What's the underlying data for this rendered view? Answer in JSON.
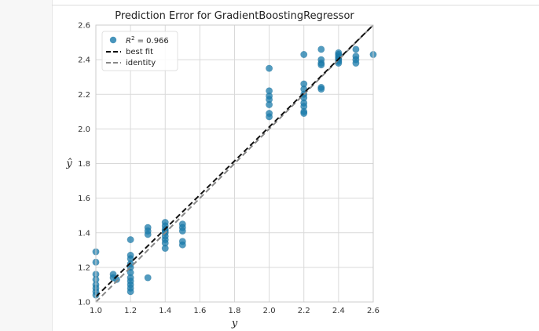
{
  "chart_data": {
    "type": "scatter",
    "title": "Prediction Error for GradientBoostingRegressor",
    "xlabel": "y",
    "ylabel": "ŷ",
    "xlim": [
      1.0,
      2.6
    ],
    "ylim": [
      1.0,
      2.6
    ],
    "xticks": [
      "1.0",
      "1.2",
      "1.4",
      "1.6",
      "1.8",
      "2.0",
      "2.2",
      "2.4",
      "2.6"
    ],
    "yticks": [
      "1.0",
      "1.2",
      "1.4",
      "1.6",
      "1.8",
      "2.0",
      "2.2",
      "2.4",
      "2.6"
    ],
    "grid": true,
    "legend_position": "top-left",
    "legend": [
      {
        "label_main": "R",
        "label_sup": "2",
        "label_rest": " = 0.966",
        "kind": "marker",
        "color": "#1a7bab"
      },
      {
        "label": "best fit",
        "kind": "line",
        "color": "#111111"
      },
      {
        "label": "identity",
        "kind": "line",
        "color": "#888888"
      }
    ],
    "marker_color": "#1a7bab",
    "best_fit": {
      "x": [
        1.0,
        2.6
      ],
      "y": [
        1.03,
        2.6
      ]
    },
    "identity": {
      "x": [
        1.0,
        2.6
      ],
      "y": [
        1.0,
        2.6
      ]
    },
    "points": [
      [
        1.0,
        1.29
      ],
      [
        1.0,
        1.23
      ],
      [
        1.0,
        1.16
      ],
      [
        1.0,
        1.13
      ],
      [
        1.0,
        1.1
      ],
      [
        1.0,
        1.08
      ],
      [
        1.0,
        1.06
      ],
      [
        1.0,
        1.04
      ],
      [
        1.1,
        1.16
      ],
      [
        1.1,
        1.14
      ],
      [
        1.12,
        1.13
      ],
      [
        1.2,
        1.36
      ],
      [
        1.2,
        1.27
      ],
      [
        1.2,
        1.25
      ],
      [
        1.2,
        1.22
      ],
      [
        1.2,
        1.2
      ],
      [
        1.2,
        1.17
      ],
      [
        1.2,
        1.14
      ],
      [
        1.2,
        1.12
      ],
      [
        1.2,
        1.1
      ],
      [
        1.2,
        1.08
      ],
      [
        1.2,
        1.06
      ],
      [
        1.3,
        1.43
      ],
      [
        1.3,
        1.41
      ],
      [
        1.3,
        1.39
      ],
      [
        1.3,
        1.14
      ],
      [
        1.4,
        1.46
      ],
      [
        1.4,
        1.44
      ],
      [
        1.4,
        1.42
      ],
      [
        1.4,
        1.41
      ],
      [
        1.4,
        1.4
      ],
      [
        1.4,
        1.38
      ],
      [
        1.4,
        1.36
      ],
      [
        1.4,
        1.34
      ],
      [
        1.4,
        1.31
      ],
      [
        1.5,
        1.45
      ],
      [
        1.5,
        1.43
      ],
      [
        1.5,
        1.41
      ],
      [
        1.5,
        1.35
      ],
      [
        1.5,
        1.33
      ],
      [
        2.0,
        2.35
      ],
      [
        2.0,
        2.22
      ],
      [
        2.0,
        2.19
      ],
      [
        2.0,
        2.17
      ],
      [
        2.0,
        2.14
      ],
      [
        2.0,
        2.09
      ],
      [
        2.0,
        2.07
      ],
      [
        2.2,
        2.43
      ],
      [
        2.2,
        2.26
      ],
      [
        2.2,
        2.23
      ],
      [
        2.2,
        2.2
      ],
      [
        2.2,
        2.18
      ],
      [
        2.2,
        2.15
      ],
      [
        2.2,
        2.13
      ],
      [
        2.2,
        2.1
      ],
      [
        2.2,
        2.09
      ],
      [
        2.3,
        2.46
      ],
      [
        2.3,
        2.4
      ],
      [
        2.3,
        2.38
      ],
      [
        2.3,
        2.37
      ],
      [
        2.3,
        2.24
      ],
      [
        2.3,
        2.23
      ],
      [
        2.4,
        2.44
      ],
      [
        2.4,
        2.43
      ],
      [
        2.4,
        2.42
      ],
      [
        2.4,
        2.41
      ],
      [
        2.4,
        2.4
      ],
      [
        2.4,
        2.39
      ],
      [
        2.4,
        2.38
      ],
      [
        2.5,
        2.46
      ],
      [
        2.5,
        2.42
      ],
      [
        2.5,
        2.4
      ],
      [
        2.5,
        2.38
      ],
      [
        2.6,
        2.43
      ]
    ]
  }
}
